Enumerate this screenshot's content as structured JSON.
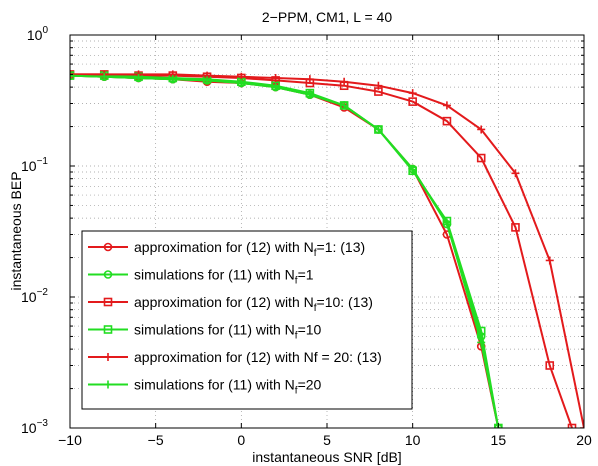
{
  "chart_data": {
    "type": "line",
    "title": "2−PPM, CM1, L = 40",
    "xlabel": "instantaneous SNR [dB]",
    "ylabel": "instantaneous BEP",
    "xlim": [
      -10,
      20
    ],
    "ylim": [
      0.001,
      1
    ],
    "yscale": "log",
    "grid": true,
    "legend_position": "bottom-left",
    "x_ticks": [
      -10,
      -5,
      0,
      5,
      10,
      15,
      20
    ],
    "x_tick_labels": [
      "−10",
      "−5",
      "0",
      "5",
      "10",
      "15",
      "20"
    ],
    "y_ticks": [
      {
        "value": 0.001,
        "base": "10",
        "exp": "−3"
      },
      {
        "value": 0.01,
        "base": "10",
        "exp": "−2"
      },
      {
        "value": 0.1,
        "base": "10",
        "exp": "−1"
      },
      {
        "value": 1,
        "base": "10",
        "exp": "0"
      }
    ],
    "series": [
      {
        "legend_main": "approximation for (12) with N",
        "legend_sub": "f",
        "legend_tail": "=1: (13)",
        "color": "#e31a1c",
        "marker": "circle",
        "x": [
          -10,
          -8,
          -6,
          -4,
          -2,
          0,
          2,
          4,
          6,
          8,
          10,
          12,
          14,
          15
        ],
        "y": [
          0.49,
          0.48,
          0.47,
          0.46,
          0.44,
          0.43,
          0.4,
          0.35,
          0.28,
          0.19,
          0.095,
          0.03,
          0.0042,
          0.001
        ]
      },
      {
        "legend_main": "simulations for (11) with N",
        "legend_sub": "f",
        "legend_tail": "=1",
        "color": "#22dd22",
        "marker": "circle",
        "x": [
          -10,
          -8,
          -6,
          -4,
          -2,
          0,
          2,
          4,
          6,
          8,
          10,
          12,
          14,
          15
        ],
        "y": [
          0.49,
          0.48,
          0.47,
          0.46,
          0.45,
          0.43,
          0.4,
          0.35,
          0.29,
          0.19,
          0.095,
          0.036,
          0.005,
          0.001
        ]
      },
      {
        "legend_main": "approximation for (12) with N",
        "legend_sub": "f",
        "legend_tail": "=10: (13)",
        "color": "#e31a1c",
        "marker": "square",
        "x": [
          -10,
          -8,
          -6,
          -4,
          -2,
          0,
          2,
          4,
          6,
          8,
          10,
          12,
          14,
          16,
          18,
          19.3
        ],
        "y": [
          0.5,
          0.5,
          0.49,
          0.49,
          0.48,
          0.47,
          0.45,
          0.43,
          0.41,
          0.37,
          0.31,
          0.22,
          0.115,
          0.034,
          0.003,
          0.001
        ]
      },
      {
        "legend_main": "simulations for (11) with N",
        "legend_sub": "f",
        "legend_tail": "=10",
        "color": "#22dd22",
        "marker": "square",
        "x": [
          -10,
          -8,
          -6,
          -4,
          -2,
          0,
          2,
          4,
          6,
          8,
          10,
          12,
          14,
          15
        ],
        "y": [
          0.49,
          0.49,
          0.48,
          0.47,
          0.46,
          0.44,
          0.41,
          0.36,
          0.29,
          0.19,
          0.092,
          0.038,
          0.0055,
          0.001
        ]
      },
      {
        "legend_main": "approximation for (12) with Nf = 20: (13)",
        "legend_sub": "",
        "legend_tail": "",
        "color": "#e31a1c",
        "marker": "plus",
        "x": [
          -10,
          -8,
          -6,
          -4,
          -2,
          0,
          2,
          4,
          6,
          8,
          10,
          12,
          14,
          16,
          18,
          20
        ],
        "y": [
          0.5,
          0.5,
          0.5,
          0.5,
          0.49,
          0.48,
          0.47,
          0.46,
          0.44,
          0.41,
          0.36,
          0.29,
          0.19,
          0.088,
          0.019,
          0.001
        ]
      },
      {
        "legend_main": "simulations for (11) with N",
        "legend_sub": "f",
        "legend_tail": "=20",
        "color": "#22dd22",
        "marker": "plus",
        "x": [
          -10,
          -8,
          -6,
          -4,
          -2,
          0,
          2,
          4,
          6,
          8,
          10,
          12,
          14,
          15
        ],
        "y": [
          0.49,
          0.48,
          0.47,
          0.46,
          0.45,
          0.43,
          0.4,
          0.35,
          0.29,
          0.19,
          0.094,
          0.037,
          0.0045,
          0.001
        ]
      }
    ]
  }
}
